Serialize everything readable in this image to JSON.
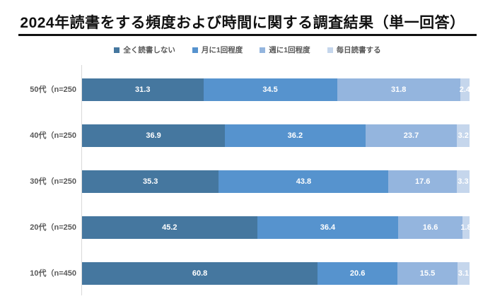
{
  "title": {
    "text": "2024年読書をする頻度および時間に関する調査結果（単一回答）"
  },
  "colors": {
    "never": "#45779F",
    "monthly": "#5693CE",
    "weekly": "#94B5DE",
    "daily": "#C5D6EC",
    "axis_line": "#d9d9d9",
    "category_label": "#595959",
    "value_label": "#ffffff",
    "legend_text": "#595959",
    "title_text": "#111111"
  },
  "chart_data": {
    "type": "bar",
    "stacked": true,
    "orientation": "horizontal",
    "unit": "percent",
    "title": "2024年読書をする頻度および時間に関する調査結果（単一回答）",
    "xlabel": "",
    "ylabel": "",
    "xlim": [
      0,
      100
    ],
    "grid": false,
    "legend_position": "top-center",
    "categories": [
      "50代（n=250",
      "40代（n=250",
      "30代（n=250",
      "20代（n=250",
      "10代（n=450"
    ],
    "series": [
      {
        "name": "全く読書しない",
        "color": "#45779F",
        "values": [
          31.3,
          36.9,
          35.3,
          45.2,
          60.8
        ]
      },
      {
        "name": "月に1回程度",
        "color": "#5693CE",
        "values": [
          34.5,
          36.2,
          43.8,
          36.4,
          20.6
        ]
      },
      {
        "name": "週に1回程度",
        "color": "#94B5DE",
        "values": [
          31.8,
          23.7,
          17.6,
          16.6,
          15.5
        ]
      },
      {
        "name": "毎日読書する",
        "color": "#C5D6EC",
        "values": [
          2.4,
          3.2,
          3.3,
          1.8,
          3.1
        ]
      }
    ],
    "value_label_format": "one-decimal"
  }
}
